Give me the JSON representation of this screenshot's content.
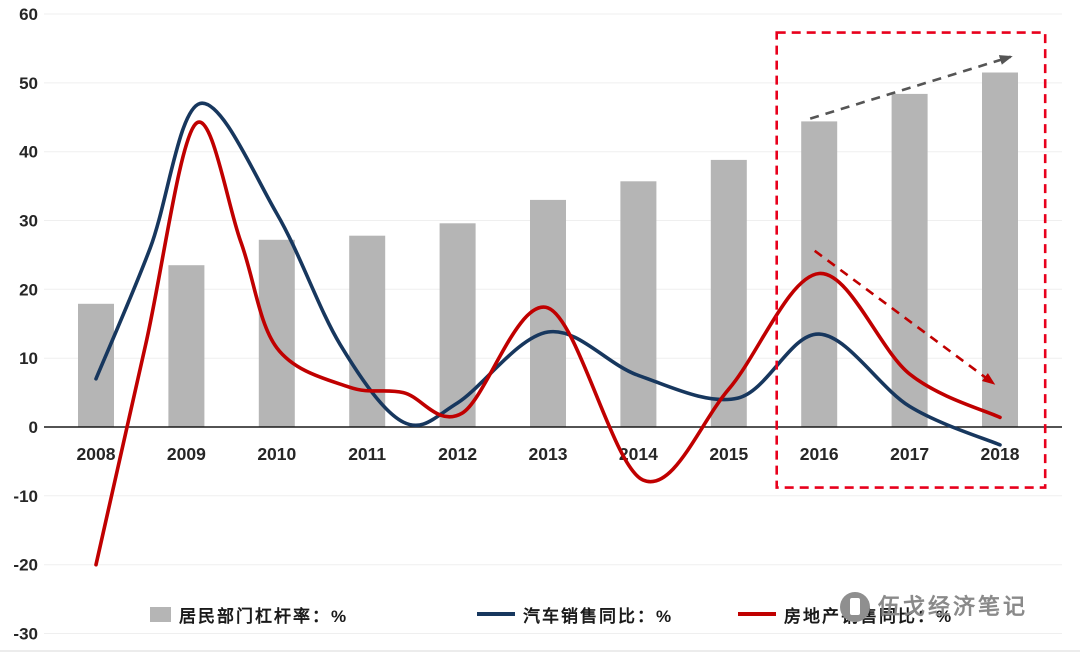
{
  "chart_data": {
    "type": "bar+line",
    "categories": [
      "2008",
      "2009",
      "2010",
      "2011",
      "2012",
      "2013",
      "2014",
      "2015",
      "2016",
      "2017",
      "2018"
    ],
    "ylim": [
      -30,
      60
    ],
    "yticks": [
      60,
      50,
      40,
      30,
      20,
      10,
      0,
      -10,
      -20,
      -30
    ],
    "grid": "faint horizontal",
    "legend_position": "bottom",
    "bar_series": {
      "name": "居民部门杠杆率：%",
      "color": "#b5b5b5",
      "values": [
        17.9,
        23.5,
        27.2,
        27.8,
        29.6,
        33.0,
        35.7,
        38.8,
        44.4,
        48.4,
        51.5
      ]
    },
    "line_series": [
      {
        "name": "汽车销售同比：%",
        "color": "#17375e",
        "points": [
          [
            2008,
            7
          ],
          [
            2008.6,
            26
          ],
          [
            2009.15,
            47
          ],
          [
            2010,
            31
          ],
          [
            2010.7,
            12
          ],
          [
            2011.4,
            0.7
          ],
          [
            2012,
            3.5
          ],
          [
            2013,
            13.8
          ],
          [
            2014,
            7.5
          ],
          [
            2015.1,
            4.2
          ],
          [
            2016,
            13.5
          ],
          [
            2017,
            3
          ],
          [
            2018,
            -2.6
          ]
        ]
      },
      {
        "name": "房地产销售同比：%",
        "color": "#c00000",
        "points": [
          [
            2008,
            -20
          ],
          [
            2008.55,
            12
          ],
          [
            2009.1,
            44
          ],
          [
            2009.6,
            27
          ],
          [
            2010,
            11.5
          ],
          [
            2010.8,
            5.8
          ],
          [
            2011.4,
            5
          ],
          [
            2012.05,
            2
          ],
          [
            2013,
            17.3
          ],
          [
            2014.05,
            -7.7
          ],
          [
            2015,
            5.5
          ],
          [
            2016,
            22.3
          ],
          [
            2017,
            7.7
          ],
          [
            2018,
            1.4
          ]
        ]
      }
    ],
    "annotations": {
      "highlight_box": {
        "year_from": 2015.53,
        "year_to": 2018.5,
        "value_top": 57.3,
        "value_bottom": -8.8,
        "color": "#e8001c",
        "style": "dashed"
      },
      "trend_arrow_up": {
        "from": [
          2015.9,
          44.8
        ],
        "to": [
          2018.12,
          53.8
        ],
        "color": "#555555",
        "style": "dashed"
      },
      "trend_arrow_down": {
        "from": [
          2015.95,
          25.6
        ],
        "to": [
          2017.93,
          6.3
        ],
        "color": "#c00000",
        "style": "dashed"
      }
    }
  },
  "legend": {
    "items": [
      {
        "label": "居民部门杠杆率：%",
        "type": "bar",
        "color": "#b5b5b5"
      },
      {
        "label": "汽车销售同比：%",
        "type": "line",
        "color": "#17375e"
      },
      {
        "label": "房地产销售同比：%",
        "type": "line",
        "color": "#c00000"
      }
    ]
  },
  "watermark": {
    "text": "伍戈经济笔记"
  }
}
